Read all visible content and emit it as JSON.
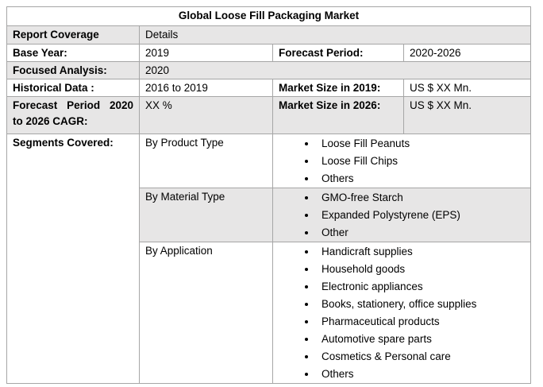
{
  "table": {
    "title": "Global Loose Fill Packaging Market",
    "header": [
      "Report Coverage",
      "Details"
    ],
    "rows": [
      [
        "Base Year:",
        "2019",
        "Forecast Period:",
        "2020-2026"
      ],
      [
        "Focused Analysis:",
        "2020"
      ],
      [
        "Historical Data :",
        "2016 to 2019",
        "Market Size in 2019:",
        "US $ XX Mn."
      ],
      [
        "Forecast Period 2020 to 2026 CAGR:",
        "XX %",
        "Market Size in 2026:",
        "US $ XX Mn."
      ]
    ],
    "segments": {
      "label": "Segments Covered:",
      "groups": [
        {
          "name": "By Product Type",
          "items": [
            "Loose Fill Peanuts",
            "Loose Fill Chips",
            "Others"
          ]
        },
        {
          "name": "By Material Type",
          "items": [
            "GMO-free Starch",
            "Expanded Polystyrene (EPS)",
            "Other"
          ]
        },
        {
          "name": "By Application",
          "items": [
            "Handicraft supplies",
            "Household goods",
            "Electronic appliances",
            "Books, stationery, office supplies",
            "Pharmaceutical products",
            "Automotive spare parts",
            "Cosmetics & Personal care",
            "Others"
          ]
        }
      ]
    }
  }
}
